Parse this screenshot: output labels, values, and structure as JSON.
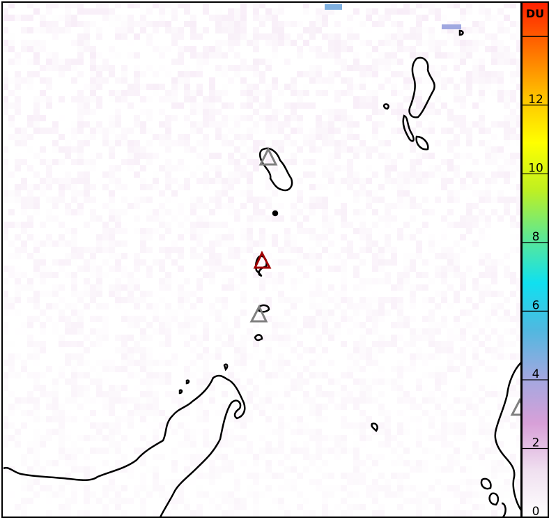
{
  "colorbar": {
    "unit_label": "DU",
    "min": 0,
    "max": 15,
    "ticks": [
      0,
      2,
      4,
      6,
      8,
      10,
      12,
      14
    ],
    "tick_labels": [
      "0",
      "2",
      "4",
      "6",
      "8",
      "10",
      "12",
      ""
    ],
    "stops": [
      "#ffffff",
      "#f0e0f0",
      "#d8a0d8",
      "#a0a8e0",
      "#50b8e0",
      "#10e0f0",
      "#60e890",
      "#c0f020",
      "#ffff00",
      "#ffc000",
      "#ff7000",
      "#ff2000"
    ]
  },
  "map": {
    "background_value_color": "#f3e6f5",
    "volcano_markers": [
      {
        "status": "inactive",
        "color": "#808080"
      },
      {
        "status": "active",
        "color": "#a00000"
      },
      {
        "status": "inactive",
        "color": "#808080"
      },
      {
        "status": "inactive",
        "color": "#808080"
      }
    ],
    "coastline_color": "#000000"
  }
}
